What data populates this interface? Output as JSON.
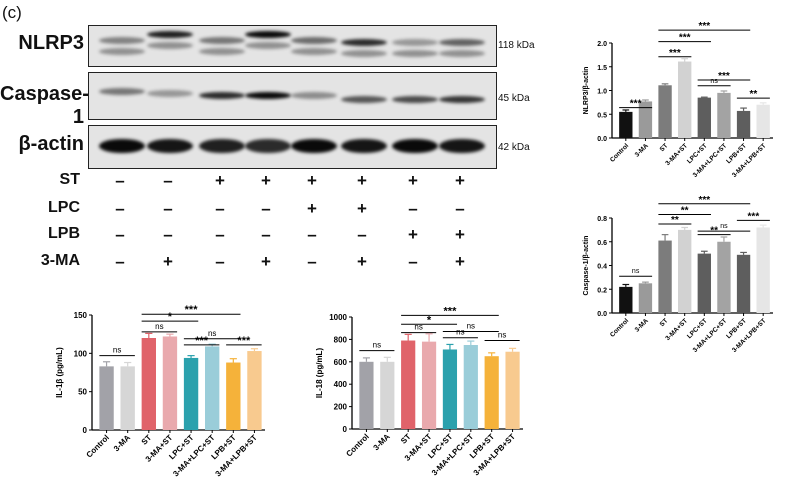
{
  "panel_label": "(c)",
  "blots": [
    {
      "name": "NLRP3",
      "kda": "118 kDa"
    },
    {
      "name": "Caspase-1",
      "kda": "45 kDa"
    },
    {
      "name": "β-actin",
      "kda": "42 kDa"
    }
  ],
  "treatments": [
    {
      "name": "ST",
      "signs": [
        "–",
        "–",
        "+",
        "+",
        "+",
        "+",
        "+",
        "+"
      ]
    },
    {
      "name": "LPC",
      "signs": [
        "–",
        "–",
        "–",
        "–",
        "+",
        "+",
        "–",
        "–"
      ]
    },
    {
      "name": "LPB",
      "signs": [
        "–",
        "–",
        "–",
        "–",
        "–",
        "–",
        "+",
        "+"
      ]
    },
    {
      "name": "3-MA",
      "signs": [
        "–",
        "+",
        "–",
        "+",
        "–",
        "+",
        "–",
        "+"
      ]
    }
  ],
  "chart_data": [
    {
      "id": "nlrp3",
      "type": "bar",
      "ylabel": "NLRP3/β-actin",
      "ylim": [
        0,
        2.0
      ],
      "yticks": [
        "0.0",
        "0.5",
        "1.0",
        "1.5",
        "2.0"
      ],
      "categories": [
        "Control",
        "3-MA",
        "ST",
        "3-MA+ST",
        "LPC+ST",
        "3-MA+LPC+ST",
        "LPB+ST",
        "3-MA+LPB+ST"
      ],
      "values": [
        0.55,
        0.77,
        1.11,
        1.61,
        0.85,
        0.95,
        0.57,
        0.7
      ],
      "errors": [
        0.04,
        0.03,
        0.03,
        0.06,
        0.01,
        0.04,
        0.06,
        0.04
      ],
      "colors": [
        "#111111",
        "#9a9a9a",
        "#7c7c7c",
        "#d2d2d2",
        "#5e5e5e",
        "#a3a3a3",
        "#5e5e5e",
        "#e6e6e6"
      ],
      "significance": [
        {
          "from": 0,
          "to": 1,
          "label": "***"
        },
        {
          "from": 2,
          "to": 3,
          "label": "***"
        },
        {
          "from": 2,
          "to": 4,
          "label": "***"
        },
        {
          "from": 2,
          "to": 6,
          "label": "***"
        },
        {
          "from": 4,
          "to": 5,
          "label": "ns"
        },
        {
          "from": 4,
          "to": 6,
          "label": "***"
        },
        {
          "from": 6,
          "to": 7,
          "label": "**"
        }
      ]
    },
    {
      "id": "caspase1",
      "type": "bar",
      "ylabel": "Caspase-1/β-actin",
      "ylim": [
        0,
        0.8
      ],
      "yticks": [
        "0.0",
        "0.2",
        "0.4",
        "0.6",
        "0.8"
      ],
      "categories": [
        "Control",
        "3-MA",
        "ST",
        "3-MA+ST",
        "LPC+ST",
        "3-MA+LPC+ST",
        "LPB+ST",
        "3-MA+LPB+ST"
      ],
      "values": [
        0.22,
        0.25,
        0.61,
        0.7,
        0.5,
        0.6,
        0.49,
        0.72
      ],
      "errors": [
        0.02,
        0.01,
        0.05,
        0.02,
        0.02,
        0.04,
        0.02,
        0.02
      ],
      "colors": [
        "#111111",
        "#9a9a9a",
        "#7c7c7c",
        "#d2d2d2",
        "#5e5e5e",
        "#a3a3a3",
        "#5e5e5e",
        "#e6e6e6"
      ],
      "significance": [
        {
          "from": 0,
          "to": 1,
          "label": "ns"
        },
        {
          "from": 2,
          "to": 3,
          "label": "**"
        },
        {
          "from": 2,
          "to": 4,
          "label": "**"
        },
        {
          "from": 2,
          "to": 6,
          "label": "***"
        },
        {
          "from": 4,
          "to": 5,
          "label": "**"
        },
        {
          "from": 4,
          "to": 6,
          "label": "ns"
        },
        {
          "from": 6,
          "to": 7,
          "label": "***"
        }
      ]
    },
    {
      "id": "il1b",
      "type": "bar",
      "ylabel": "IL-1β (pg/mL)",
      "ylim": [
        0,
        150
      ],
      "yticks": [
        "0",
        "50",
        "100",
        "150"
      ],
      "categories": [
        "Control",
        "3-MA",
        "ST",
        "3-MA+ST",
        "LPC+ST",
        "3-MA+LPC+ST",
        "LPB+ST",
        "3-MA+LPB+ST"
      ],
      "values": [
        83,
        83,
        120,
        122,
        94,
        109,
        88,
        103
      ],
      "errors": [
        6,
        5,
        6,
        3,
        3,
        3,
        5,
        3
      ],
      "colors": [
        "#a2a2a8",
        "#d6d6d6",
        "#e0636a",
        "#e9a9ad",
        "#2ba1ad",
        "#9acdd9",
        "#f5b23a",
        "#f8ca8f"
      ],
      "significance": [
        {
          "from": 0,
          "to": 1,
          "label": "ns"
        },
        {
          "from": 2,
          "to": 3,
          "label": "ns"
        },
        {
          "from": 2,
          "to": 4,
          "label": "*"
        },
        {
          "from": 2,
          "to": 6,
          "label": "***"
        },
        {
          "from": 4,
          "to": 5,
          "label": "***"
        },
        {
          "from": 4,
          "to": 6,
          "label": "ns"
        },
        {
          "from": 6,
          "to": 7,
          "label": "***"
        }
      ]
    },
    {
      "id": "il18",
      "type": "bar",
      "ylabel": "IL-18 (pg/mL)",
      "ylim": [
        0,
        1000
      ],
      "yticks": [
        "0",
        "200",
        "400",
        "600",
        "800",
        "1000"
      ],
      "categories": [
        "Control",
        "3-MA",
        "ST",
        "3-MA+ST",
        "LPC+ST",
        "3-MA+LPC+ST",
        "LPB+ST",
        "3-MA+LPB+ST"
      ],
      "values": [
        600,
        600,
        790,
        780,
        710,
        750,
        650,
        690
      ],
      "errors": [
        35,
        40,
        55,
        70,
        45,
        35,
        30,
        30
      ],
      "colors": [
        "#a2a2a8",
        "#d6d6d6",
        "#e0636a",
        "#e9a9ad",
        "#2ba1ad",
        "#9acdd9",
        "#f5b23a",
        "#f8ca8f"
      ],
      "significance": [
        {
          "from": 0,
          "to": 1,
          "label": "ns"
        },
        {
          "from": 2,
          "to": 3,
          "label": "ns"
        },
        {
          "from": 2,
          "to": 4,
          "label": "*"
        },
        {
          "from": 2,
          "to": 6,
          "label": "***"
        },
        {
          "from": 4,
          "to": 5,
          "label": "ns"
        },
        {
          "from": 4,
          "to": 6,
          "label": "ns"
        },
        {
          "from": 6,
          "to": 7,
          "label": "ns"
        }
      ]
    }
  ]
}
